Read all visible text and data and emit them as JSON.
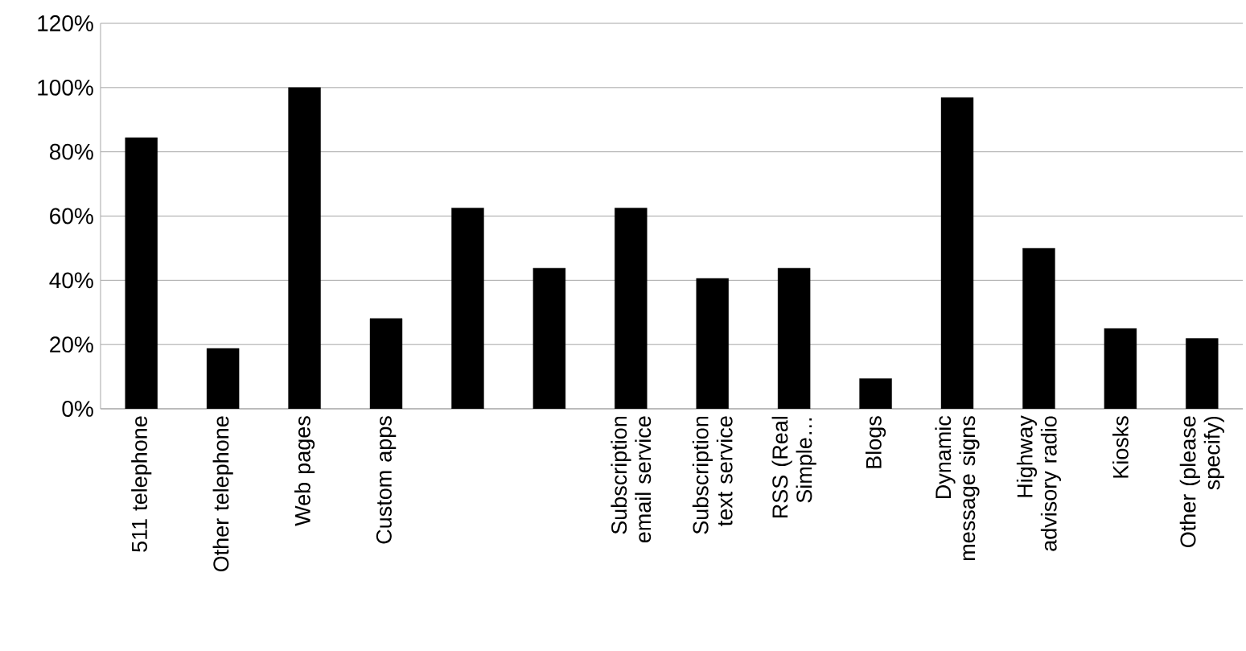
{
  "chart_data": {
    "type": "bar",
    "categories": [
      "511 telephone",
      "Other telephone",
      "Web pages",
      "Custom apps",
      null,
      null,
      "Subscription email service",
      "Subscription text service",
      "RSS (Real Simple…",
      "Blogs",
      "Dynamic message signs",
      "Highway advisory radio",
      "Kiosks",
      "Other (please specify)"
    ],
    "values": [
      84.4,
      18.8,
      100,
      28.1,
      62.5,
      43.8,
      62.5,
      40.6,
      43.8,
      9.4,
      96.9,
      50,
      25,
      21.9
    ],
    "color": "#000000",
    "ylim": [
      0,
      120
    ],
    "yticks": [
      {
        "value": 0,
        "label": "0%"
      },
      {
        "value": 20,
        "label": "20%"
      },
      {
        "value": 40,
        "label": "40%"
      },
      {
        "value": 60,
        "label": "60%"
      },
      {
        "value": 80,
        "label": "80%"
      },
      {
        "value": 100,
        "label": "100%"
      },
      {
        "value": 120,
        "label": "120%"
      }
    ],
    "grid": "y"
  }
}
